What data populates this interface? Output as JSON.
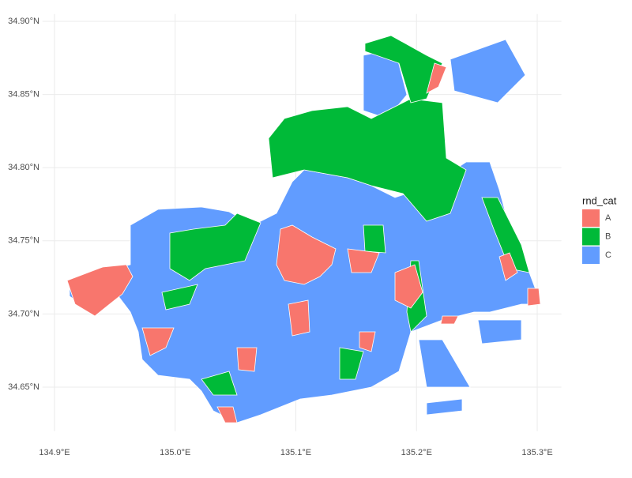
{
  "chart_data": {
    "type": "map",
    "xlim": [
      134.89,
      135.32
    ],
    "ylim": [
      34.62,
      34.905
    ],
    "xticks": [
      {
        "value": 134.9,
        "label": "134.9°E"
      },
      {
        "value": 135.0,
        "label": "135.0°E"
      },
      {
        "value": 135.1,
        "label": "135.1°E"
      },
      {
        "value": 135.2,
        "label": "135.2°E"
      },
      {
        "value": 135.3,
        "label": "135.3°E"
      }
    ],
    "yticks": [
      {
        "value": 34.65,
        "label": "34.65°N"
      },
      {
        "value": 34.7,
        "label": "34.70°N"
      },
      {
        "value": 34.75,
        "label": "34.75°N"
      },
      {
        "value": 34.8,
        "label": "34.80°N"
      },
      {
        "value": 34.85,
        "label": "34.85°N"
      },
      {
        "value": 34.9,
        "label": "34.90°N"
      }
    ],
    "grid": true,
    "legend_title": "rnd_cat",
    "series": [
      {
        "name": "A",
        "color": "#F8766D"
      },
      {
        "name": "B",
        "color": "#00BA38"
      },
      {
        "name": "C",
        "color": "#619CFF"
      }
    ]
  }
}
